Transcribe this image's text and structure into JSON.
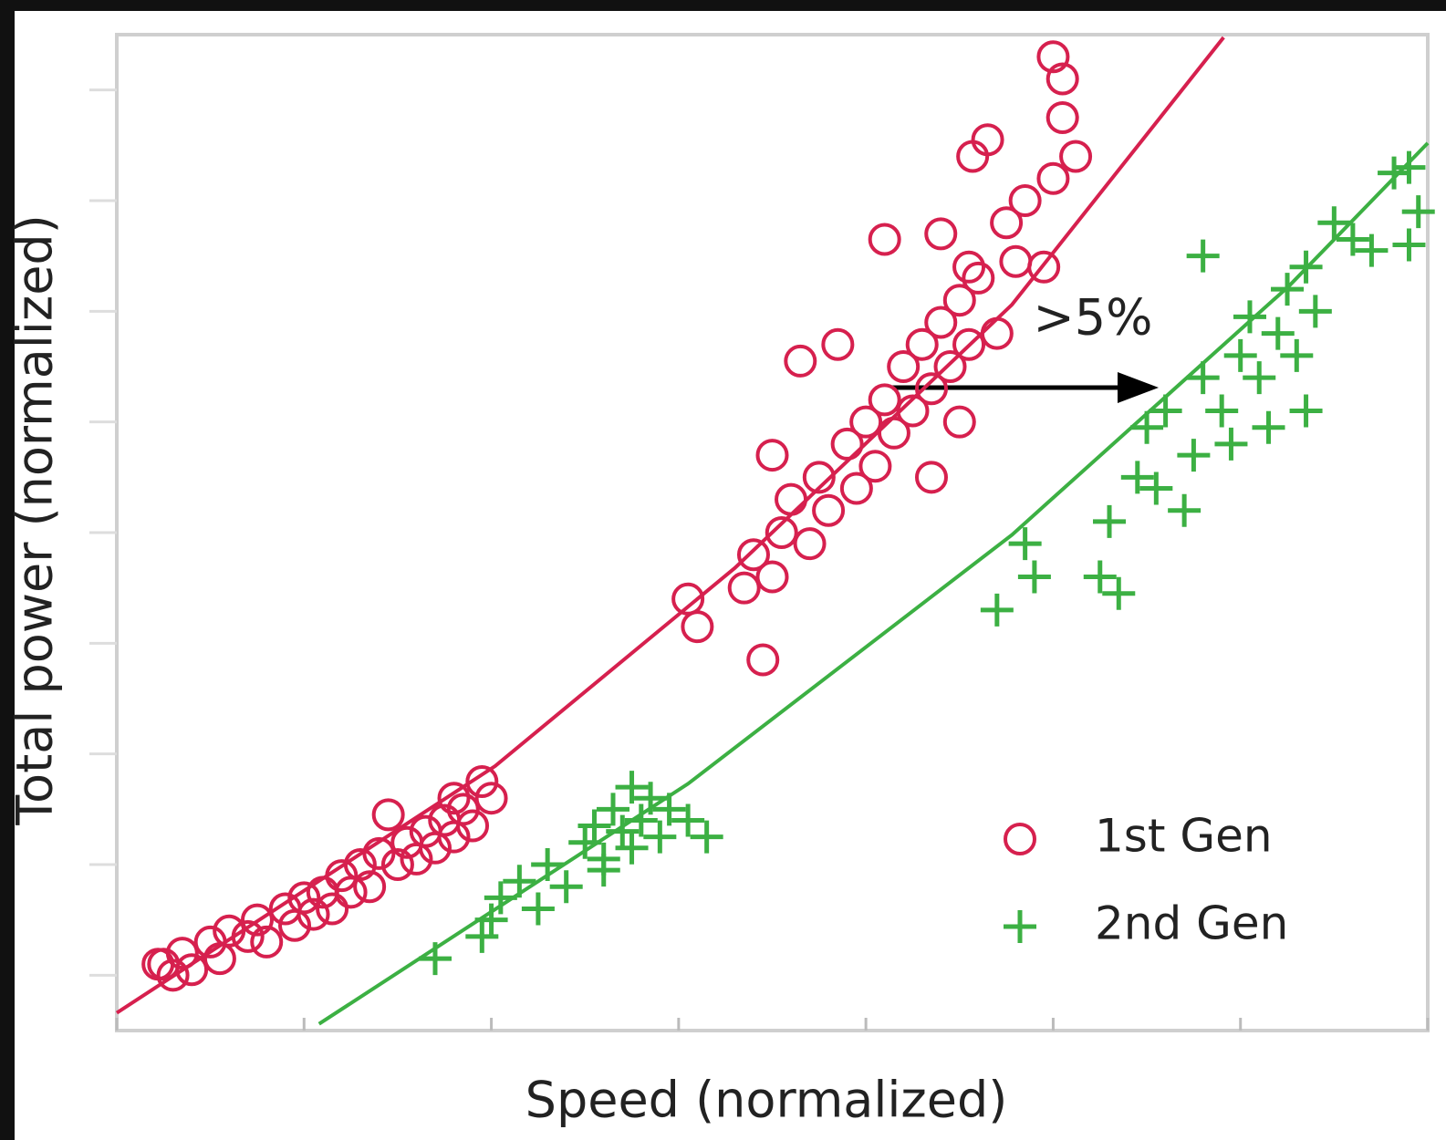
{
  "chart_data": {
    "type": "scatter",
    "x_label": "Speed (normalized)",
    "y_label": "Total power (normalized)",
    "annotation": ">5%",
    "xlim": [
      0,
      7
    ],
    "ylim": [
      0.5,
      9.5
    ],
    "xticks": [
      0,
      1,
      2,
      3,
      4,
      5,
      6,
      7
    ],
    "yticks": [
      1,
      2,
      3,
      4,
      5,
      6,
      7,
      8,
      9
    ],
    "legend": "lower right",
    "series": [
      {
        "name": "1st Gen",
        "color": "#d6204e",
        "marker": "circle",
        "x": [
          0.25,
          0.35,
          0.4,
          0.5,
          0.55,
          0.6,
          0.7,
          0.75,
          0.8,
          0.9,
          0.95,
          1.0,
          1.05,
          1.1,
          1.15,
          1.2,
          1.25,
          1.3,
          1.35,
          1.4,
          1.5,
          1.55,
          1.6,
          1.65,
          1.7,
          1.75,
          1.8,
          1.85,
          1.9,
          1.8,
          1.95,
          2.0,
          1.45,
          0.22,
          0.3,
          3.1,
          3.35,
          3.4,
          3.5,
          3.55,
          3.6,
          3.7,
          3.75,
          3.8,
          3.9,
          3.95,
          4.0,
          4.05,
          4.1,
          4.15,
          4.2,
          4.25,
          4.3,
          4.35,
          4.4,
          4.45,
          4.5,
          4.55,
          4.6,
          4.5,
          4.35,
          3.5,
          3.65,
          3.85,
          4.1,
          4.4,
          4.55,
          4.8,
          4.95,
          4.75,
          4.85,
          5.0,
          5.05,
          5.12,
          4.57,
          4.65,
          5.0,
          5.05,
          4.7,
          3.45,
          3.05
        ],
        "values": [
          1.1,
          1.2,
          1.05,
          1.3,
          1.15,
          1.4,
          1.35,
          1.5,
          1.3,
          1.6,
          1.45,
          1.7,
          1.55,
          1.75,
          1.6,
          1.9,
          1.75,
          2.0,
          1.8,
          2.1,
          2.0,
          2.2,
          2.05,
          2.3,
          2.15,
          2.4,
          2.25,
          2.5,
          2.35,
          2.6,
          2.75,
          2.6,
          2.45,
          1.1,
          1.0,
          4.15,
          4.5,
          4.8,
          4.6,
          5.0,
          5.3,
          4.9,
          5.5,
          5.2,
          5.8,
          5.4,
          6.0,
          5.6,
          6.2,
          5.9,
          6.5,
          6.1,
          6.7,
          6.3,
          6.9,
          6.5,
          7.1,
          6.7,
          7.3,
          6.0,
          5.5,
          5.7,
          6.55,
          6.7,
          7.65,
          7.7,
          7.4,
          7.45,
          7.4,
          7.8,
          8.0,
          8.2,
          8.75,
          8.4,
          8.4,
          8.55,
          9.3,
          9.1,
          6.8,
          3.85,
          4.4
        ]
      },
      {
        "name": "2nd Gen",
        "color": "#3cb043",
        "marker": "plus",
        "x": [
          1.7,
          1.95,
          2.0,
          2.05,
          2.15,
          2.25,
          2.3,
          2.4,
          2.5,
          2.55,
          2.6,
          2.65,
          2.7,
          2.75,
          2.8,
          2.85,
          2.9,
          2.95,
          3.05,
          3.15,
          2.6,
          2.75,
          4.7,
          4.85,
          4.9,
          5.25,
          5.35,
          5.45,
          5.5,
          5.55,
          5.6,
          5.7,
          5.75,
          5.8,
          5.9,
          5.95,
          6.0,
          6.05,
          6.1,
          6.15,
          6.2,
          6.25,
          6.3,
          6.35,
          6.4,
          6.5,
          6.6,
          6.7,
          6.9,
          6.95,
          6.9,
          6.82,
          5.8,
          6.35,
          5.3
        ],
        "values": [
          1.15,
          1.35,
          1.5,
          1.7,
          1.85,
          1.6,
          2.0,
          1.8,
          2.2,
          2.35,
          2.05,
          2.5,
          2.3,
          2.15,
          2.4,
          2.6,
          2.25,
          2.5,
          2.4,
          2.25,
          1.95,
          2.7,
          4.3,
          4.9,
          4.6,
          4.6,
          4.45,
          5.5,
          5.95,
          5.4,
          6.1,
          5.2,
          5.7,
          6.4,
          6.1,
          5.8,
          6.6,
          6.95,
          6.4,
          5.95,
          6.8,
          7.2,
          6.6,
          7.4,
          7.0,
          7.8,
          7.65,
          7.55,
          8.3,
          7.9,
          7.6,
          8.25,
          7.5,
          6.1,
          5.1
        ]
      }
    ],
    "fits": [
      {
        "color": "#d6204e",
        "x": [
          0,
          2.02,
          3.3,
          4.78,
          5.91
        ],
        "values": [
          0.66,
          2.89,
          4.68,
          7.06,
          9.475
        ]
      },
      {
        "color": "#3cb043",
        "x": [
          1.08,
          3.05,
          4.78,
          6.26,
          7.0
        ],
        "values": [
          0.56,
          2.73,
          4.98,
          7.23,
          8.52
        ]
      }
    ]
  }
}
